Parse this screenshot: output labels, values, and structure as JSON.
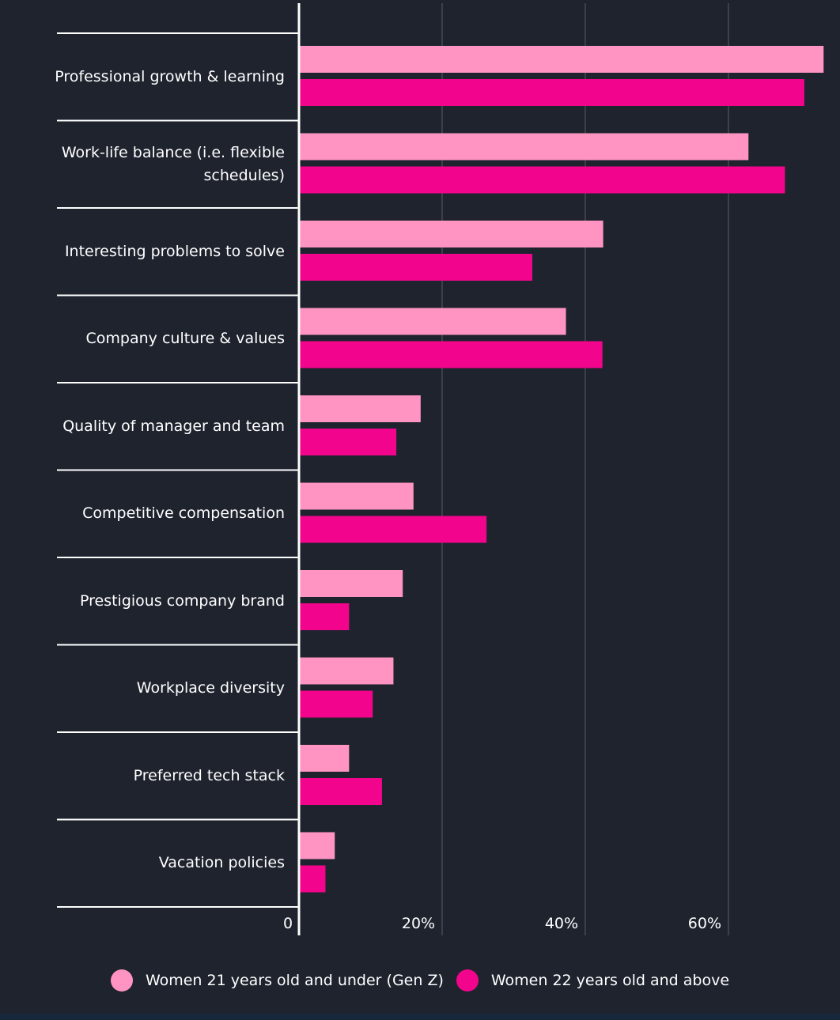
{
  "colors": {
    "background": "#1e232e",
    "gen_z": "#ff94c2",
    "over_22": "#f2058c",
    "grid": "#5b5f68",
    "axis": "#ffffff"
  },
  "legend": {
    "gen_z_label": "Women 21 years old and under (Gen Z)",
    "over_22_label": "Women 22 years old and above"
  },
  "chart_data": {
    "type": "bar",
    "orientation": "horizontal",
    "categories": [
      "Professional growth & learning",
      "Work-life balance (i.e. flexible schedules)",
      "Interesting problems to solve",
      "Company culture & values",
      "Quality of manager and team",
      "Competitive compensation",
      "Prestigious company brand",
      "Workplace diversity",
      "Preferred tech stack",
      "Vacation policies"
    ],
    "series": [
      {
        "name": "Women 21 years old and under (Gen Z)",
        "color": "#ff94c2",
        "values": [
          73.3,
          62.8,
          42.5,
          37.3,
          17.0,
          16.0,
          14.5,
          13.2,
          7.0,
          5.0
        ]
      },
      {
        "name": "Women 22 years old and above",
        "color": "#f2058c",
        "values": [
          70.6,
          67.9,
          32.6,
          42.4,
          13.6,
          26.2,
          7.0,
          10.3,
          11.6,
          3.7
        ]
      }
    ],
    "x_ticks": [
      "0",
      "20%",
      "40%",
      "60%"
    ],
    "x_tick_values": [
      0,
      20,
      40,
      60
    ],
    "xlim": [
      0,
      73.6
    ],
    "grid": true,
    "legend_position": "bottom"
  }
}
